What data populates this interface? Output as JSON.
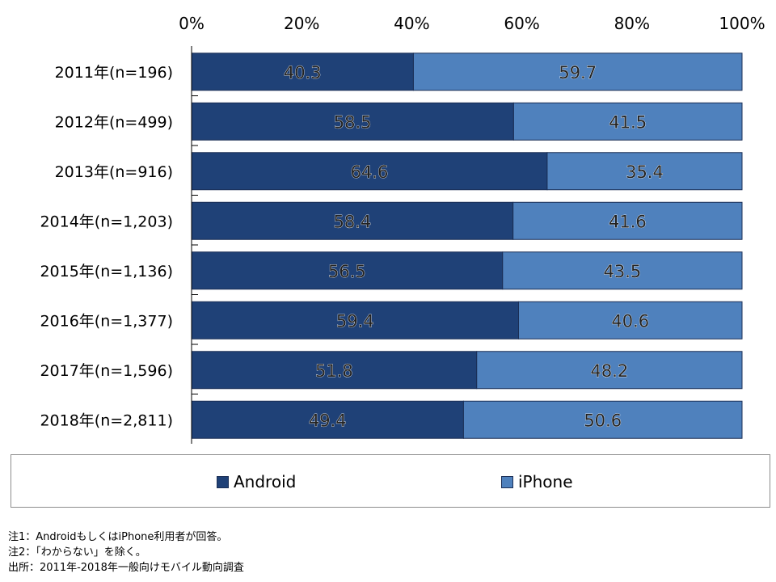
{
  "chart_data": {
    "type": "bar",
    "orientation": "horizontal",
    "stacked": "100%",
    "categories": [
      "2011年(n=196)",
      "2012年(n=499)",
      "2013年(n=916)",
      "2014年(n=1,203)",
      "2015年(n=1,136)",
      "2016年(n=1,377)",
      "2017年(n=1,596)",
      "2018年(n=2,811)"
    ],
    "series": [
      {
        "name": "Android",
        "color": "#1f4177",
        "values": [
          40.3,
          58.5,
          64.6,
          58.4,
          56.5,
          59.4,
          51.8,
          49.4
        ]
      },
      {
        "name": "iPhone",
        "color": "#4f81bd",
        "values": [
          59.7,
          41.5,
          35.4,
          41.6,
          43.5,
          40.6,
          48.2,
          50.6
        ]
      }
    ],
    "x_ticks": [
      "0%",
      "20%",
      "40%",
      "60%",
      "80%",
      "100%"
    ],
    "xlim": [
      0,
      100
    ],
    "axis_position": "top",
    "grid": false,
    "legend_position": "bottom"
  },
  "legend": {
    "android_label": "Android",
    "iphone_label": "iPhone"
  },
  "notes": [
    "注1：AndroidもしくはiPhone利用者が回答。",
    "注2：「わからない」を除く。",
    "出所：2011年-2018年一般向けモバイル動向調査"
  ]
}
